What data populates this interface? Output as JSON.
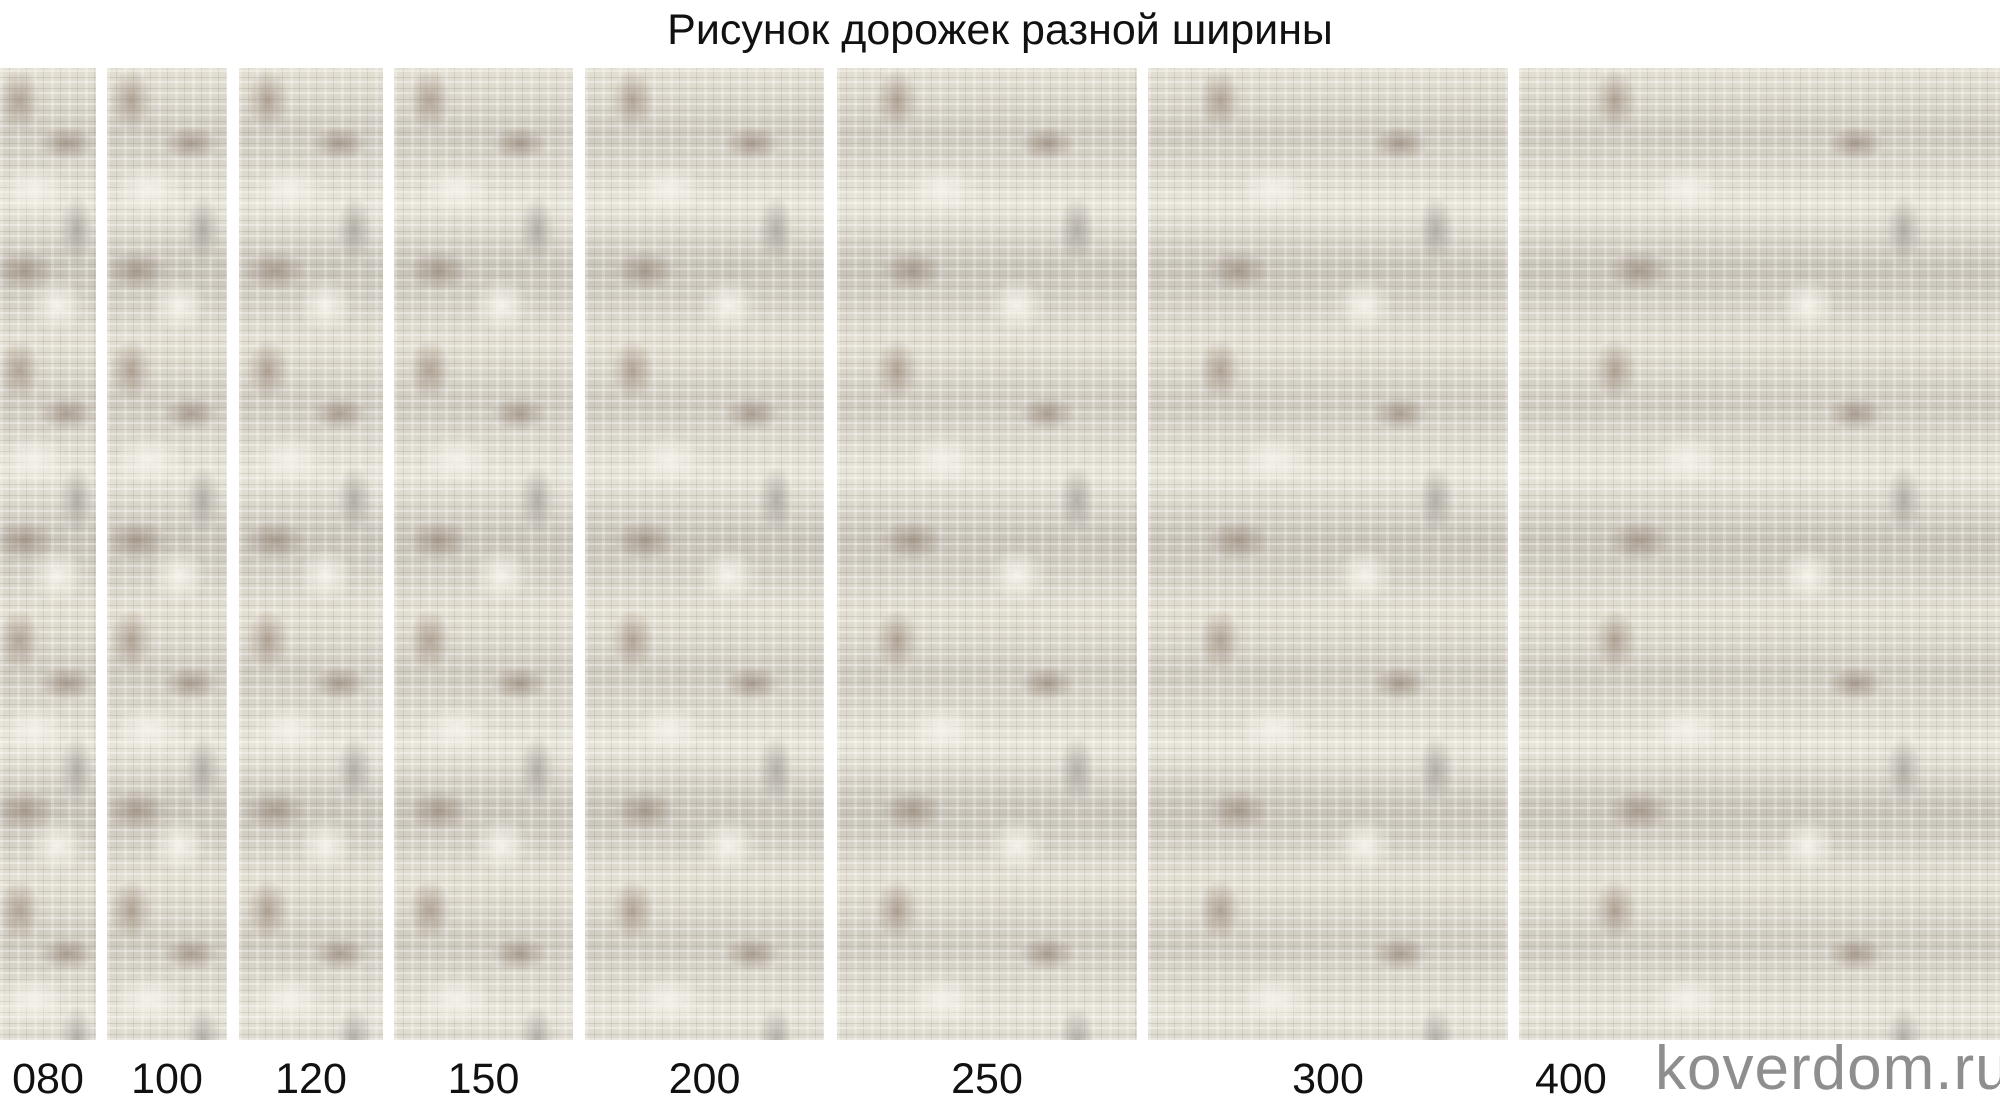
{
  "title": "Рисунок дорожек разной ширины",
  "runners": [
    {
      "label": "080"
    },
    {
      "label": "100"
    },
    {
      "label": "120"
    },
    {
      "label": "150"
    },
    {
      "label": "200"
    },
    {
      "label": "250"
    },
    {
      "label": "300"
    },
    {
      "label": "400"
    }
  ],
  "watermark": "koverdom.ru",
  "colors": {
    "rug_base": "#d9d5c8",
    "rug_dark": "#8c7869",
    "watermark": "#8e8e8e"
  }
}
